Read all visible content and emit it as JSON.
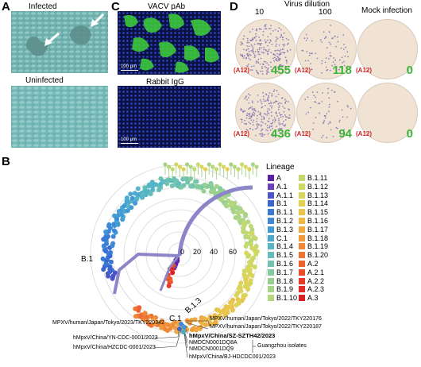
{
  "panels": {
    "a": {
      "label": "A",
      "infected": "Infected",
      "uninfected": "Uninfected"
    },
    "c": {
      "label": "C",
      "top": "VACV pAb",
      "bottom": "Rabbit IgG",
      "scale_top": "100 μm",
      "scale_bottom": "100 μm"
    },
    "d": {
      "label": "D",
      "virus_dilution": "Virus dilution",
      "mock": "Mock infection",
      "dil_10": "10",
      "dil_100": "100",
      "wells": [
        {
          "tag": "(A12)",
          "count": "455"
        },
        {
          "tag": "(A12)",
          "count": "118"
        },
        {
          "tag": "(A12)",
          "count": "0"
        },
        {
          "tag": "(A12)",
          "count": "436"
        },
        {
          "tag": "(A12)",
          "count": "94"
        },
        {
          "tag": "(A12)",
          "count": "0"
        }
      ]
    },
    "b": {
      "label": "B",
      "radial_ticks": [
        "0",
        "20",
        "40",
        "60"
      ],
      "branch_b1": "B.1",
      "branch_c1": "C.1",
      "branch_b13": "B.1.3"
    }
  },
  "legend": {
    "title": "Lineage",
    "items": [
      {
        "name": "A",
        "color": "#5a1fa3"
      },
      {
        "name": "A.1",
        "color": "#6a3fc0"
      },
      {
        "name": "A.1.1",
        "color": "#4d54c8"
      },
      {
        "name": "B.1",
        "color": "#3b66d0"
      },
      {
        "name": "B.1.1",
        "color": "#3a78d6"
      },
      {
        "name": "B.1.2",
        "color": "#3d89d8"
      },
      {
        "name": "B.1.3",
        "color": "#429ad4"
      },
      {
        "name": "C.1",
        "color": "#4aa8cf"
      },
      {
        "name": "B.1.4",
        "color": "#55b4c6"
      },
      {
        "name": "B.1.5",
        "color": "#62bdbb"
      },
      {
        "name": "B.1.6",
        "color": "#72c4ae"
      },
      {
        "name": "B.1.7",
        "color": "#84ca9f"
      },
      {
        "name": "B.1.8",
        "color": "#96cf92"
      },
      {
        "name": "B.1.9",
        "color": "#a6d387"
      },
      {
        "name": "B.1.10",
        "color": "#b4d67c"
      },
      {
        "name": "B.1.11",
        "color": "#c2d870"
      },
      {
        "name": "B.1.12",
        "color": "#cdd866"
      },
      {
        "name": "B.1.13",
        "color": "#d8d65d"
      },
      {
        "name": "B.1.14",
        "color": "#e1d055"
      },
      {
        "name": "B.1.15",
        "color": "#e8c64d"
      },
      {
        "name": "B.1.16",
        "color": "#ecb946"
      },
      {
        "name": "B.1.17",
        "color": "#eeaa40"
      },
      {
        "name": "B.1.18",
        "color": "#ef993b"
      },
      {
        "name": "B.1.19",
        "color": "#ef8737"
      },
      {
        "name": "B.1.20",
        "color": "#ee7433"
      },
      {
        "name": "A.2",
        "color": "#ec612f"
      },
      {
        "name": "A.2.1",
        "color": "#e94e2b"
      },
      {
        "name": "A.2.2",
        "color": "#e53b28"
      },
      {
        "name": "A.2.3",
        "color": "#e02b26"
      },
      {
        "name": "A.3",
        "color": "#d91f26"
      }
    ]
  },
  "isolates": {
    "tky220342": "MPXV/human/Japan/Tokyo/2023/TKY220342",
    "tky220176": "MPXV/human/Japan/Tokyo/2022/TKY220176",
    "tky220187": "MPXV/human/Japan/Tokyo/2022/TKY220187",
    "sz": "hMpxV/China/SZ-SZTH42/2023",
    "yn": "hMpxV/China/YN-CDC-0001/2023",
    "hz": "hMpxV/China/HZCDC-0001/2023",
    "q8a": "NMDCN0001DQ8A",
    "q9": "NMDCN0001DQ9",
    "bj": "hMpxV/China/BJ-HDCDC001/2023",
    "guangzhou": "Guangzhou isolates"
  }
}
